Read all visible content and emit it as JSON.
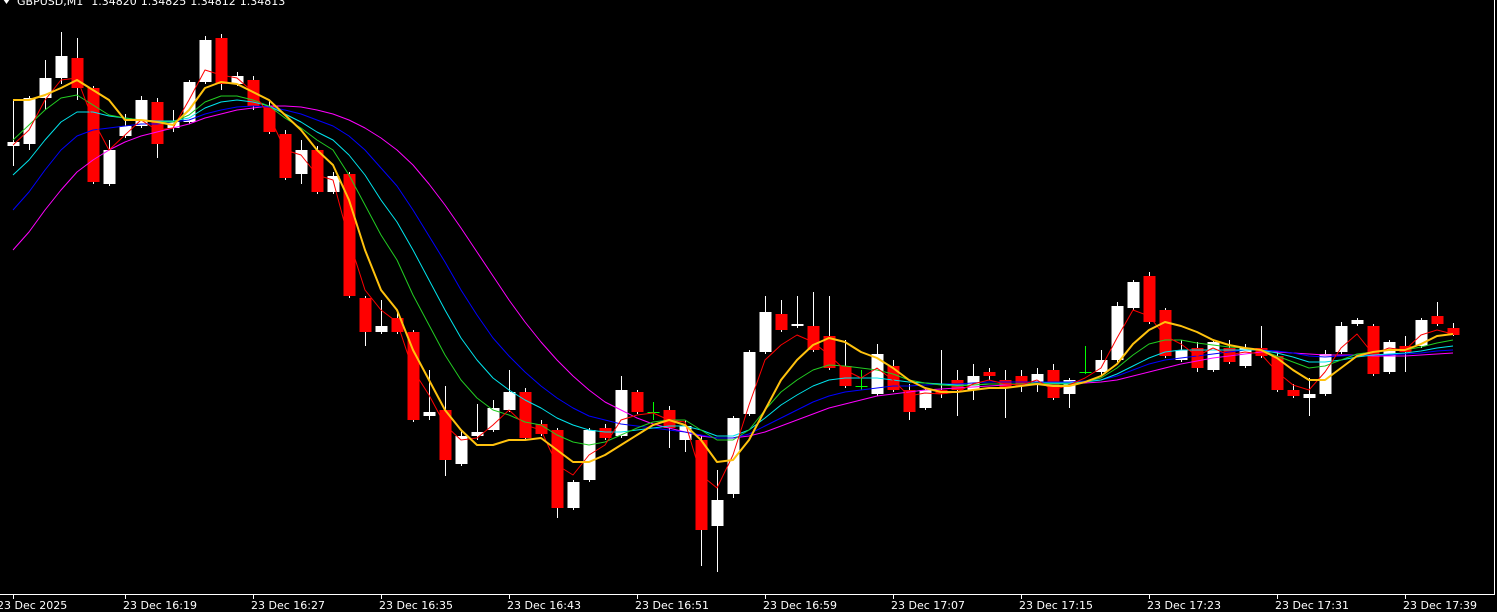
{
  "chart_data": {
    "type": "candlestick",
    "title": "GBPUSD,M1",
    "last_bar_labels": [
      "1.34820",
      "1.34825",
      "1.34812",
      "1.34813"
    ],
    "categories": [
      "23 Dec 2025",
      null,
      null,
      null,
      null,
      null,
      null,
      "23 Dec 16:19",
      null,
      null,
      null,
      null,
      null,
      null,
      null,
      "23 Dec 16:27",
      null,
      null,
      null,
      null,
      null,
      null,
      null,
      "23 Dec 16:35",
      null,
      null,
      null,
      null,
      null,
      null,
      null,
      "23 Dec 16:43",
      null,
      null,
      null,
      null,
      null,
      null,
      null,
      "23 Dec 16:51",
      null,
      null,
      null,
      null,
      null,
      null,
      null,
      "23 Dec 16:59",
      null,
      null,
      null,
      null,
      null,
      null,
      null,
      "23 Dec 17:07",
      null,
      null,
      null,
      null,
      null,
      null,
      null,
      "23 Dec 17:15",
      null,
      null,
      null,
      null,
      null,
      null,
      null,
      "23 Dec 17:23",
      null,
      null,
      null,
      null,
      null,
      null,
      null,
      "23 Dec 17:31",
      null,
      null,
      null,
      null,
      null,
      null,
      null,
      "23 Dec 17:39",
      null,
      null,
      null
    ],
    "open": [
      1.35002,
      1.35004,
      1.3505,
      1.3507,
      1.3509,
      1.3506,
      1.34964,
      1.35012,
      1.35022,
      1.35046,
      1.3502,
      1.35026,
      1.35066,
      1.3511,
      1.35064,
      1.35068,
      1.35042,
      1.35014,
      1.34974,
      1.34998,
      1.34956,
      1.34974,
      1.3485,
      1.34816,
      1.3483,
      1.34816,
      1.34732,
      1.34738,
      1.34684,
      1.34712,
      1.34718,
      1.34738,
      1.34756,
      1.34724,
      1.34718,
      1.3464,
      1.34668,
      1.3472,
      1.34712,
      1.34756,
      1.34736,
      1.34738,
      1.34708,
      1.34708,
      1.34622,
      1.34654,
      1.34734,
      1.34796,
      1.34834,
      1.34822,
      1.34822,
      1.34812,
      1.34782,
      1.34762,
      1.34754,
      1.34782,
      1.34758,
      1.3474,
      1.34758,
      1.34768,
      1.34758,
      1.34776,
      1.34768,
      1.34772,
      1.34764,
      1.34778,
      1.34754,
      1.34776,
      1.34776,
      1.34788,
      1.3484,
      1.34872,
      1.34838,
      1.34788,
      1.348,
      1.34778,
      1.348,
      1.34782,
      1.348,
      1.34792,
      1.34758,
      1.3475,
      1.34754,
      1.34796,
      1.34824,
      1.34822,
      1.34776,
      1.34802,
      1.34802,
      1.34832,
      1.3482
    ],
    "high": [
      1.35048,
      1.35052,
      1.35088,
      1.35116,
      1.3511,
      1.35062,
      1.35008,
      1.35034,
      1.35052,
      1.3505,
      1.35038,
      1.35068,
      1.35112,
      1.35114,
      1.35076,
      1.35072,
      1.35048,
      1.35018,
      1.35008,
      1.35002,
      1.34976,
      1.34976,
      1.34852,
      1.34848,
      1.34838,
      1.34818,
      1.34778,
      1.34762,
      1.34718,
      1.34744,
      1.34748,
      1.34778,
      1.3476,
      1.34728,
      1.3472,
      1.34668,
      1.3472,
      1.34724,
      1.34772,
      1.34758,
      1.34746,
      1.34742,
      1.34728,
      1.34712,
      1.34678,
      1.34732,
      1.34798,
      1.34852,
      1.34848,
      1.34852,
      1.34856,
      1.34852,
      1.34808,
      1.34778,
      1.34804,
      1.34788,
      1.34764,
      1.3476,
      1.34798,
      1.34778,
      1.34784,
      1.3478,
      1.34778,
      1.34778,
      1.3478,
      1.34784,
      1.3477,
      1.34802,
      1.34798,
      1.34846,
      1.34868,
      1.34876,
      1.3484,
      1.34808,
      1.34806,
      1.34808,
      1.34808,
      1.34804,
      1.34822,
      1.34796,
      1.34764,
      1.3477,
      1.34798,
      1.34826,
      1.3483,
      1.34824,
      1.34808,
      1.34812,
      1.3483,
      1.34846,
      1.34825
    ],
    "low": [
      1.34982,
      1.34998,
      1.35038,
      1.35064,
      1.35048,
      1.34964,
      1.34962,
      1.3501,
      1.3502,
      1.3499,
      1.35016,
      1.35024,
      1.35064,
      1.35058,
      1.35062,
      1.35038,
      1.35014,
      1.34968,
      1.34964,
      1.34954,
      1.34954,
      1.3485,
      1.34802,
      1.34814,
      1.34814,
      1.34726,
      1.34728,
      1.34672,
      1.34682,
      1.34708,
      1.34716,
      1.34736,
      1.34708,
      1.34712,
      1.3463,
      1.34638,
      1.34666,
      1.34708,
      1.3471,
      1.34734,
      1.34728,
      1.347,
      1.34696,
      1.34582,
      1.34576,
      1.3465,
      1.34732,
      1.34794,
      1.34816,
      1.3482,
      1.34796,
      1.34778,
      1.3476,
      1.34758,
      1.34752,
      1.34756,
      1.34728,
      1.34738,
      1.3475,
      1.34732,
      1.34748,
      1.34768,
      1.3473,
      1.34756,
      1.34756,
      1.34748,
      1.3474,
      1.34774,
      1.34772,
      1.34786,
      1.34838,
      1.34824,
      1.3479,
      1.34786,
      1.34776,
      1.34776,
      1.34784,
      1.3478,
      1.3479,
      1.34756,
      1.3475,
      1.34732,
      1.34752,
      1.34794,
      1.34822,
      1.34772,
      1.34774,
      1.34776,
      1.348,
      1.34822,
      1.34812
    ],
    "close": [
      1.35006,
      1.3505,
      1.3507,
      1.35092,
      1.3506,
      1.34966,
      1.34998,
      1.35022,
      1.35048,
      1.35004,
      1.35026,
      1.35066,
      1.35108,
      1.35064,
      1.35072,
      1.35042,
      1.35016,
      1.3497,
      1.34998,
      1.34956,
      1.34972,
      1.34852,
      1.34816,
      1.34822,
      1.34816,
      1.34728,
      1.34736,
      1.34688,
      1.34712,
      1.34716,
      1.3474,
      1.34756,
      1.3471,
      1.34714,
      1.3464,
      1.34666,
      1.34718,
      1.3471,
      1.34758,
      1.34736,
      1.34736,
      1.3472,
      1.34722,
      1.34618,
      1.34648,
      1.3473,
      1.34796,
      1.34836,
      1.34818,
      1.34824,
      1.34798,
      1.3478,
      1.34762,
      1.34762,
      1.34794,
      1.34758,
      1.34736,
      1.34758,
      1.34754,
      1.34758,
      1.34772,
      1.34772,
      1.3476,
      1.34762,
      1.34774,
      1.3475,
      1.34768,
      1.34776,
      1.34788,
      1.34842,
      1.34866,
      1.34826,
      1.34792,
      1.34798,
      1.3478,
      1.34806,
      1.34786,
      1.348,
      1.34792,
      1.34758,
      1.34752,
      1.34754,
      1.34794,
      1.34822,
      1.34828,
      1.34774,
      1.34806,
      1.34796,
      1.34828,
      1.34824,
      1.34813
    ],
    "overlays": [
      {
        "color": "#ff00ff",
        "width": 1,
        "values": [
          1.34898,
          1.34916,
          1.34938,
          1.34958,
          1.34976,
          1.34988,
          1.34998,
          1.35006,
          1.35012,
          1.35016,
          1.3502,
          1.35024,
          1.3503,
          1.35034,
          1.35038,
          1.3504,
          1.35042,
          1.35042,
          1.35041,
          1.35038,
          1.35034,
          1.35028,
          1.3502,
          1.3501,
          1.34998,
          1.34983,
          1.34964,
          1.34943,
          1.3492,
          1.34896,
          1.34872,
          1.34848,
          1.34826,
          1.34806,
          1.34788,
          1.34772,
          1.34758,
          1.34746,
          1.34738,
          1.3473,
          1.34724,
          1.3472,
          1.34716,
          1.34712,
          1.3471,
          1.3471,
          1.34712,
          1.34716,
          1.34722,
          1.34728,
          1.34734,
          1.3474,
          1.34744,
          1.34748,
          1.34752,
          1.34754,
          1.34756,
          1.34758,
          1.34759,
          1.3476,
          1.34761,
          1.34762,
          1.34763,
          1.34764,
          1.34764,
          1.34764,
          1.34764,
          1.34765,
          1.34766,
          1.34768,
          1.34772,
          1.34776,
          1.3478,
          1.34784,
          1.34787,
          1.3479,
          1.34792,
          1.34794,
          1.34796,
          1.34796,
          1.34795,
          1.34794,
          1.34793,
          1.34793,
          1.34793,
          1.34792,
          1.34792,
          1.34792,
          1.34793,
          1.34794,
          1.34795
        ]
      },
      {
        "color": "#0000ff",
        "width": 1,
        "values": [
          1.34938,
          1.34956,
          1.34978,
          1.34998,
          1.35012,
          1.35018,
          1.3502,
          1.35022,
          1.35024,
          1.35024,
          1.35026,
          1.35028,
          1.35034,
          1.35038,
          1.35041,
          1.35042,
          1.35041,
          1.35038,
          1.35034,
          1.35028,
          1.35022,
          1.35012,
          1.34998,
          1.3498,
          1.34962,
          1.34938,
          1.34912,
          1.34886,
          1.34858,
          1.34833,
          1.3481,
          1.34792,
          1.34776,
          1.34762,
          1.3475,
          1.3474,
          1.34732,
          1.34728,
          1.34724,
          1.34722,
          1.3472,
          1.34718,
          1.34716,
          1.34713,
          1.3471,
          1.3471,
          1.34714,
          1.34722,
          1.3473,
          1.34738,
          1.34746,
          1.34752,
          1.34756,
          1.34758,
          1.3476,
          1.34762,
          1.34762,
          1.34763,
          1.34764,
          1.34764,
          1.34765,
          1.34766,
          1.34766,
          1.34766,
          1.34766,
          1.34766,
          1.34766,
          1.34767,
          1.34768,
          1.34772,
          1.34778,
          1.34784,
          1.34788,
          1.3479,
          1.34792,
          1.34794,
          1.34796,
          1.34798,
          1.34798,
          1.34797,
          1.34795,
          1.34792,
          1.34791,
          1.34792,
          1.34793,
          1.34793,
          1.34793,
          1.34794,
          1.34795,
          1.34797,
          1.34798
        ]
      },
      {
        "color": "#00e5ee",
        "width": 1,
        "values": [
          1.34973,
          1.34988,
          1.35008,
          1.35026,
          1.35036,
          1.35036,
          1.35032,
          1.3503,
          1.35028,
          1.35027,
          1.35027,
          1.3503,
          1.3504,
          1.35046,
          1.35048,
          1.35046,
          1.35042,
          1.35034,
          1.35026,
          1.35016,
          1.35008,
          1.34993,
          1.34973,
          1.34948,
          1.34926,
          1.34898,
          1.34868,
          1.34838,
          1.3481,
          1.34788,
          1.3477,
          1.34758,
          1.34748,
          1.3474,
          1.3473,
          1.34723,
          1.34718,
          1.34716,
          1.34716,
          1.34718,
          1.3472,
          1.34722,
          1.34722,
          1.34718,
          1.34712,
          1.34712,
          1.34718,
          1.3473,
          1.34743,
          1.34753,
          1.34762,
          1.34768,
          1.3477,
          1.3477,
          1.3477,
          1.34768,
          1.34766,
          1.34765,
          1.34764,
          1.34763,
          1.34763,
          1.34764,
          1.34764,
          1.34764,
          1.34765,
          1.34765,
          1.34765,
          1.34766,
          1.34768,
          1.34774,
          1.34782,
          1.3479,
          1.34796,
          1.34798,
          1.34798,
          1.34798,
          1.34798,
          1.34798,
          1.34798,
          1.34795,
          1.34791,
          1.34786,
          1.34786,
          1.34788,
          1.34791,
          1.34793,
          1.34794,
          1.34795,
          1.34797,
          1.348,
          1.34802
        ]
      },
      {
        "color": "#22cc22",
        "width": 1,
        "values": [
          1.35008,
          1.35023,
          1.35038,
          1.3505,
          1.35053,
          1.35043,
          1.35033,
          1.3503,
          1.35028,
          1.35026,
          1.35026,
          1.35033,
          1.35046,
          1.35052,
          1.35052,
          1.35048,
          1.35042,
          1.3503,
          1.3502,
          1.35008,
          1.34998,
          1.34973,
          1.34943,
          1.34913,
          1.34888,
          1.34853,
          1.34823,
          1.34793,
          1.34768,
          1.3475,
          1.34738,
          1.34733,
          1.34726,
          1.34723,
          1.34713,
          1.34706,
          1.34703,
          1.34706,
          1.34713,
          1.3472,
          1.34726,
          1.34728,
          1.34728,
          1.34718,
          1.34708,
          1.34708,
          1.34718,
          1.34738,
          1.34756,
          1.34768,
          1.34778,
          1.34783,
          1.34782,
          1.3478,
          1.34778,
          1.34774,
          1.34768,
          1.34765,
          1.34763,
          1.34762,
          1.34763,
          1.34764,
          1.34764,
          1.34764,
          1.34765,
          1.34764,
          1.34764,
          1.34766,
          1.3477,
          1.3478,
          1.34793,
          1.34804,
          1.34808,
          1.34808,
          1.34805,
          1.34803,
          1.34801,
          1.348,
          1.34798,
          1.34792,
          1.34786,
          1.3478,
          1.34782,
          1.34788,
          1.34794,
          1.34796,
          1.34798,
          1.34798,
          1.34801,
          1.34805,
          1.34808
        ]
      },
      {
        "color": "#ff0000",
        "width": 1,
        "values": [
          1.35003,
          1.35018,
          1.35048,
          1.35068,
          1.3507,
          1.35028,
          1.34998,
          1.35013,
          1.35028,
          1.35018,
          1.3502,
          1.35048,
          1.35078,
          1.35073,
          1.3507,
          1.35056,
          1.35033,
          1.34998,
          1.34993,
          1.34973,
          1.34968,
          1.34908,
          1.34858,
          1.34838,
          1.34826,
          1.34778,
          1.34753,
          1.34723,
          1.34708,
          1.3471,
          1.34723,
          1.34738,
          1.34723,
          1.34718,
          1.34683,
          1.34673,
          1.34693,
          1.34703,
          1.34728,
          1.34733,
          1.34735,
          1.34728,
          1.34726,
          1.34673,
          1.3466,
          1.34693,
          1.34743,
          1.34788,
          1.34803,
          1.34813,
          1.34806,
          1.34793,
          1.34778,
          1.3477,
          1.3478,
          1.34768,
          1.34752,
          1.34755,
          1.34754,
          1.34756,
          1.34764,
          1.34768,
          1.34764,
          1.34763,
          1.34768,
          1.34758,
          1.34763,
          1.3477,
          1.3478,
          1.3481,
          1.34838,
          1.34832,
          1.34812,
          1.34804,
          1.34792,
          1.348,
          1.34793,
          1.34796,
          1.34794,
          1.34776,
          1.34763,
          1.34758,
          1.34776,
          1.348,
          1.34814,
          1.34794,
          1.348,
          1.34798,
          1.34813,
          1.34818,
          1.34814
        ]
      },
      {
        "color": "#ffc20e",
        "width": 2,
        "values": [
          1.35048,
          1.35048,
          1.35053,
          1.3506,
          1.35068,
          1.35058,
          1.35048,
          1.35028,
          1.35028,
          1.35026,
          1.35023,
          1.35038,
          1.3506,
          1.35066,
          1.35064,
          1.35056,
          1.35048,
          1.35033,
          1.35018,
          1.34998,
          1.34983,
          1.34948,
          1.34898,
          1.34858,
          1.34838,
          1.34798,
          1.34768,
          1.34738,
          1.34718,
          1.34703,
          1.34703,
          1.34708,
          1.34708,
          1.3471,
          1.34698,
          1.34686,
          1.34686,
          1.34693,
          1.34703,
          1.34713,
          1.34723,
          1.34728,
          1.34723,
          1.34708,
          1.34686,
          1.34688,
          1.34708,
          1.34738,
          1.34768,
          1.34788,
          1.34803,
          1.3481,
          1.34806,
          1.34796,
          1.3479,
          1.3478,
          1.34768,
          1.3476,
          1.34756,
          1.34756,
          1.34758,
          1.3476,
          1.3476,
          1.34762,
          1.34764,
          1.34762,
          1.34762,
          1.34766,
          1.34772,
          1.34784,
          1.34804,
          1.34818,
          1.34826,
          1.34822,
          1.34816,
          1.34808,
          1.34803,
          1.348,
          1.34798,
          1.3479,
          1.34778,
          1.34768,
          1.34768,
          1.3478,
          1.34792,
          1.34796,
          1.34798,
          1.34798,
          1.34804,
          1.34812,
          1.34814
        ]
      }
    ],
    "up_color": "#ffffff",
    "down_color": "#ff0000",
    "doji_color": "#00ff00",
    "wick_color": "#ffffff",
    "background": "#000000",
    "ylim": [
      1.34554,
      1.35148
    ]
  }
}
